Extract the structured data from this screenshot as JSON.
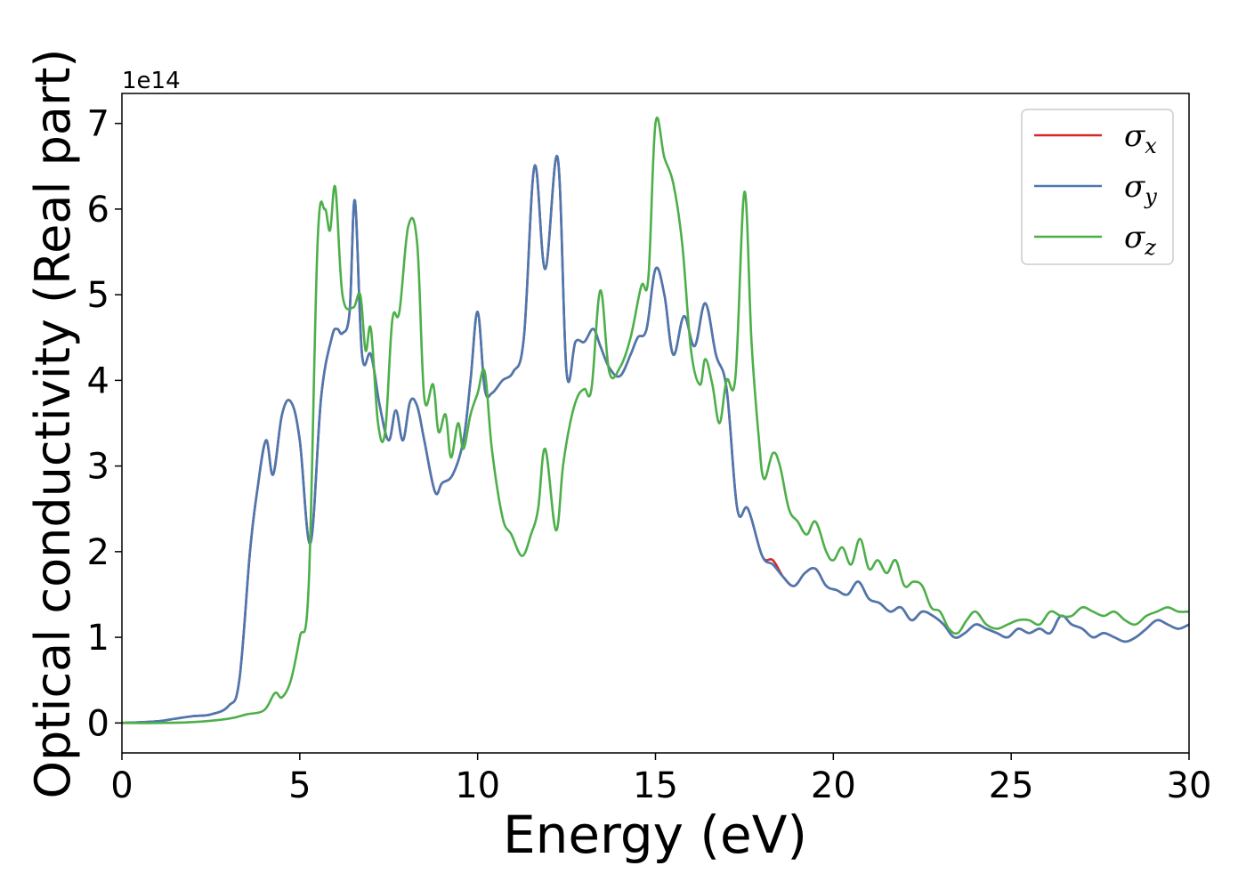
{
  "chart_data": {
    "type": "line",
    "xlabel": "Energy (eV)",
    "ylabel": "Optical conductivity (Real part)",
    "y_offset_label": "1e14",
    "y_scale": 100000000000000.0,
    "xlim": [
      0,
      30
    ],
    "ylim": [
      -0.35,
      7.35
    ],
    "x_ticks": [
      0,
      5,
      10,
      15,
      20,
      25,
      30
    ],
    "y_ticks": [
      0,
      1,
      2,
      3,
      4,
      5,
      6,
      7
    ],
    "legend_position": "top-right",
    "grid": false,
    "series": [
      {
        "name": "σx",
        "symbol": "σ",
        "subscript": "x",
        "color": "#d62728",
        "x": [
          0,
          1,
          1.5,
          2,
          2.5,
          3,
          3.3,
          3.6,
          3.8,
          4.05,
          4.25,
          4.5,
          4.75,
          5,
          5.3,
          5.6,
          5.9,
          6.05,
          6.2,
          6.4,
          6.55,
          6.75,
          7.0,
          7.25,
          7.5,
          7.7,
          7.9,
          8.1,
          8.3,
          8.5,
          8.8,
          9.0,
          9.3,
          9.6,
          9.8,
          10.0,
          10.2,
          10.4,
          10.7,
          11.0,
          11.3,
          11.6,
          11.9,
          12.25,
          12.5,
          12.75,
          13.0,
          13.25,
          13.45,
          13.7,
          14.0,
          14.3,
          14.5,
          14.75,
          15.0,
          15.25,
          15.5,
          15.8,
          16.1,
          16.4,
          16.7,
          17.0,
          17.3,
          17.6,
          18.0,
          18.3,
          18.6,
          18.9,
          19.2,
          19.5,
          19.8,
          20.1,
          20.4,
          20.7,
          21.0,
          21.3,
          21.6,
          21.9,
          22.2,
          22.5,
          22.8,
          23.1,
          23.4,
          23.7,
          24.0,
          24.3,
          24.6,
          24.9,
          25.2,
          25.5,
          25.8,
          26.1,
          26.4,
          26.7,
          27.0,
          27.3,
          27.6,
          27.9,
          28.2,
          28.5,
          28.8,
          29.1,
          29.4,
          29.7,
          30
        ],
        "values": [
          0,
          0.02,
          0.05,
          0.08,
          0.1,
          0.2,
          0.5,
          2.0,
          2.7,
          3.3,
          2.9,
          3.6,
          3.75,
          3.3,
          2.1,
          3.8,
          4.5,
          4.6,
          4.55,
          4.8,
          6.1,
          4.3,
          4.3,
          3.7,
          3.3,
          3.65,
          3.3,
          3.75,
          3.7,
          3.3,
          2.7,
          2.8,
          2.9,
          3.3,
          4.0,
          4.8,
          3.9,
          3.85,
          4.0,
          4.1,
          4.5,
          6.5,
          5.3,
          6.6,
          4.1,
          4.45,
          4.45,
          4.6,
          4.4,
          4.15,
          4.05,
          4.3,
          4.5,
          4.6,
          5.3,
          5.0,
          4.3,
          4.75,
          4.4,
          4.9,
          4.3,
          3.9,
          2.5,
          2.5,
          1.95,
          1.9,
          1.7,
          1.6,
          1.75,
          1.8,
          1.6,
          1.55,
          1.5,
          1.65,
          1.45,
          1.4,
          1.3,
          1.35,
          1.2,
          1.3,
          1.25,
          1.15,
          1.0,
          1.05,
          1.15,
          1.1,
          1.05,
          1.0,
          1.1,
          1.05,
          1.1,
          1.05,
          1.25,
          1.15,
          1.1,
          1.0,
          1.05,
          1.0,
          0.95,
          1.0,
          1.1,
          1.2,
          1.15,
          1.1,
          1.15
        ]
      },
      {
        "name": "σy",
        "symbol": "σ",
        "subscript": "y",
        "color": "#4a78b0",
        "x": [
          0,
          1,
          1.5,
          2,
          2.5,
          3,
          3.3,
          3.6,
          3.8,
          4.05,
          4.25,
          4.5,
          4.75,
          5,
          5.3,
          5.6,
          5.9,
          6.05,
          6.2,
          6.4,
          6.55,
          6.75,
          7.0,
          7.25,
          7.5,
          7.7,
          7.9,
          8.1,
          8.3,
          8.5,
          8.8,
          9.0,
          9.3,
          9.6,
          9.8,
          10.0,
          10.2,
          10.4,
          10.7,
          11.0,
          11.3,
          11.6,
          11.9,
          12.25,
          12.5,
          12.75,
          13.0,
          13.25,
          13.45,
          13.7,
          14.0,
          14.3,
          14.5,
          14.75,
          15.0,
          15.25,
          15.5,
          15.8,
          16.1,
          16.4,
          16.7,
          17.0,
          17.3,
          17.6,
          18.0,
          18.3,
          18.6,
          18.9,
          19.2,
          19.5,
          19.8,
          20.1,
          20.4,
          20.7,
          21.0,
          21.3,
          21.6,
          21.9,
          22.2,
          22.5,
          22.8,
          23.1,
          23.4,
          23.7,
          24.0,
          24.3,
          24.6,
          24.9,
          25.2,
          25.5,
          25.8,
          26.1,
          26.4,
          26.7,
          27.0,
          27.3,
          27.6,
          27.9,
          28.2,
          28.5,
          28.8,
          29.1,
          29.4,
          29.7,
          30
        ],
        "values": [
          0,
          0.02,
          0.05,
          0.08,
          0.1,
          0.2,
          0.5,
          2.0,
          2.7,
          3.3,
          2.9,
          3.6,
          3.75,
          3.3,
          2.1,
          3.8,
          4.5,
          4.6,
          4.55,
          4.8,
          6.1,
          4.3,
          4.3,
          3.7,
          3.3,
          3.65,
          3.3,
          3.75,
          3.7,
          3.3,
          2.7,
          2.8,
          2.9,
          3.3,
          4.0,
          4.8,
          3.9,
          3.85,
          4.0,
          4.1,
          4.5,
          6.5,
          5.3,
          6.6,
          4.1,
          4.45,
          4.45,
          4.6,
          4.4,
          4.15,
          4.05,
          4.3,
          4.5,
          4.6,
          5.3,
          5.0,
          4.3,
          4.75,
          4.4,
          4.9,
          4.3,
          3.9,
          2.5,
          2.5,
          1.95,
          1.85,
          1.7,
          1.6,
          1.75,
          1.8,
          1.6,
          1.55,
          1.5,
          1.65,
          1.45,
          1.4,
          1.3,
          1.35,
          1.2,
          1.3,
          1.25,
          1.15,
          1.0,
          1.05,
          1.15,
          1.1,
          1.05,
          1.0,
          1.1,
          1.05,
          1.1,
          1.05,
          1.25,
          1.15,
          1.1,
          1.0,
          1.05,
          1.0,
          0.95,
          1.0,
          1.1,
          1.2,
          1.15,
          1.1,
          1.15
        ]
      },
      {
        "name": "σz",
        "symbol": "σ",
        "subscript": "z",
        "color": "#4daf4a",
        "x": [
          0,
          1,
          2,
          3,
          3.5,
          4.0,
          4.3,
          4.5,
          4.75,
          5.0,
          5.25,
          5.5,
          5.7,
          5.85,
          6.0,
          6.2,
          6.5,
          6.7,
          6.85,
          7.0,
          7.2,
          7.4,
          7.6,
          7.8,
          8.05,
          8.3,
          8.5,
          8.75,
          8.9,
          9.1,
          9.25,
          9.45,
          9.6,
          9.8,
          10.0,
          10.2,
          10.4,
          10.7,
          10.95,
          11.25,
          11.5,
          11.7,
          11.9,
          12.2,
          12.4,
          12.6,
          12.8,
          13.0,
          13.2,
          13.45,
          13.7,
          14.0,
          14.3,
          14.6,
          14.8,
          15.0,
          15.25,
          15.5,
          15.75,
          16.0,
          16.25,
          16.4,
          16.6,
          16.8,
          17.0,
          17.25,
          17.5,
          17.7,
          17.9,
          18.05,
          18.3,
          18.5,
          18.75,
          19.0,
          19.25,
          19.5,
          19.8,
          20.0,
          20.25,
          20.5,
          20.75,
          21.0,
          21.25,
          21.5,
          21.75,
          22.0,
          22.25,
          22.5,
          22.75,
          23.0,
          23.25,
          23.5,
          23.75,
          24.0,
          24.3,
          24.6,
          24.9,
          25.2,
          25.5,
          25.8,
          26.1,
          26.4,
          26.7,
          27.0,
          27.3,
          27.6,
          27.9,
          28.2,
          28.5,
          28.8,
          29.1,
          29.4,
          29.7,
          30
        ],
        "values": [
          0,
          0,
          0.01,
          0.05,
          0.1,
          0.15,
          0.35,
          0.3,
          0.5,
          1.0,
          1.6,
          5.6,
          6.0,
          5.75,
          6.25,
          5.0,
          4.85,
          5.0,
          4.35,
          4.6,
          3.5,
          3.4,
          4.7,
          4.8,
          5.8,
          5.6,
          3.8,
          3.95,
          3.4,
          3.6,
          3.1,
          3.5,
          3.2,
          3.6,
          3.85,
          4.1,
          3.2,
          2.4,
          2.2,
          1.95,
          2.2,
          2.5,
          3.2,
          2.25,
          3.0,
          3.5,
          3.8,
          3.9,
          3.9,
          5.05,
          4.1,
          4.15,
          4.5,
          5.1,
          5.2,
          7.0,
          6.6,
          6.3,
          5.6,
          4.35,
          3.95,
          4.25,
          3.95,
          3.5,
          4.0,
          4.05,
          6.2,
          4.45,
          3.35,
          2.85,
          3.15,
          3.0,
          2.5,
          2.35,
          2.2,
          2.35,
          2.0,
          1.9,
          2.05,
          1.85,
          2.15,
          1.8,
          1.9,
          1.75,
          1.9,
          1.6,
          1.65,
          1.6,
          1.35,
          1.3,
          1.1,
          1.05,
          1.2,
          1.3,
          1.15,
          1.1,
          1.15,
          1.2,
          1.2,
          1.15,
          1.3,
          1.25,
          1.25,
          1.35,
          1.3,
          1.25,
          1.3,
          1.2,
          1.15,
          1.25,
          1.3,
          1.35,
          1.3,
          1.3
        ]
      }
    ]
  }
}
